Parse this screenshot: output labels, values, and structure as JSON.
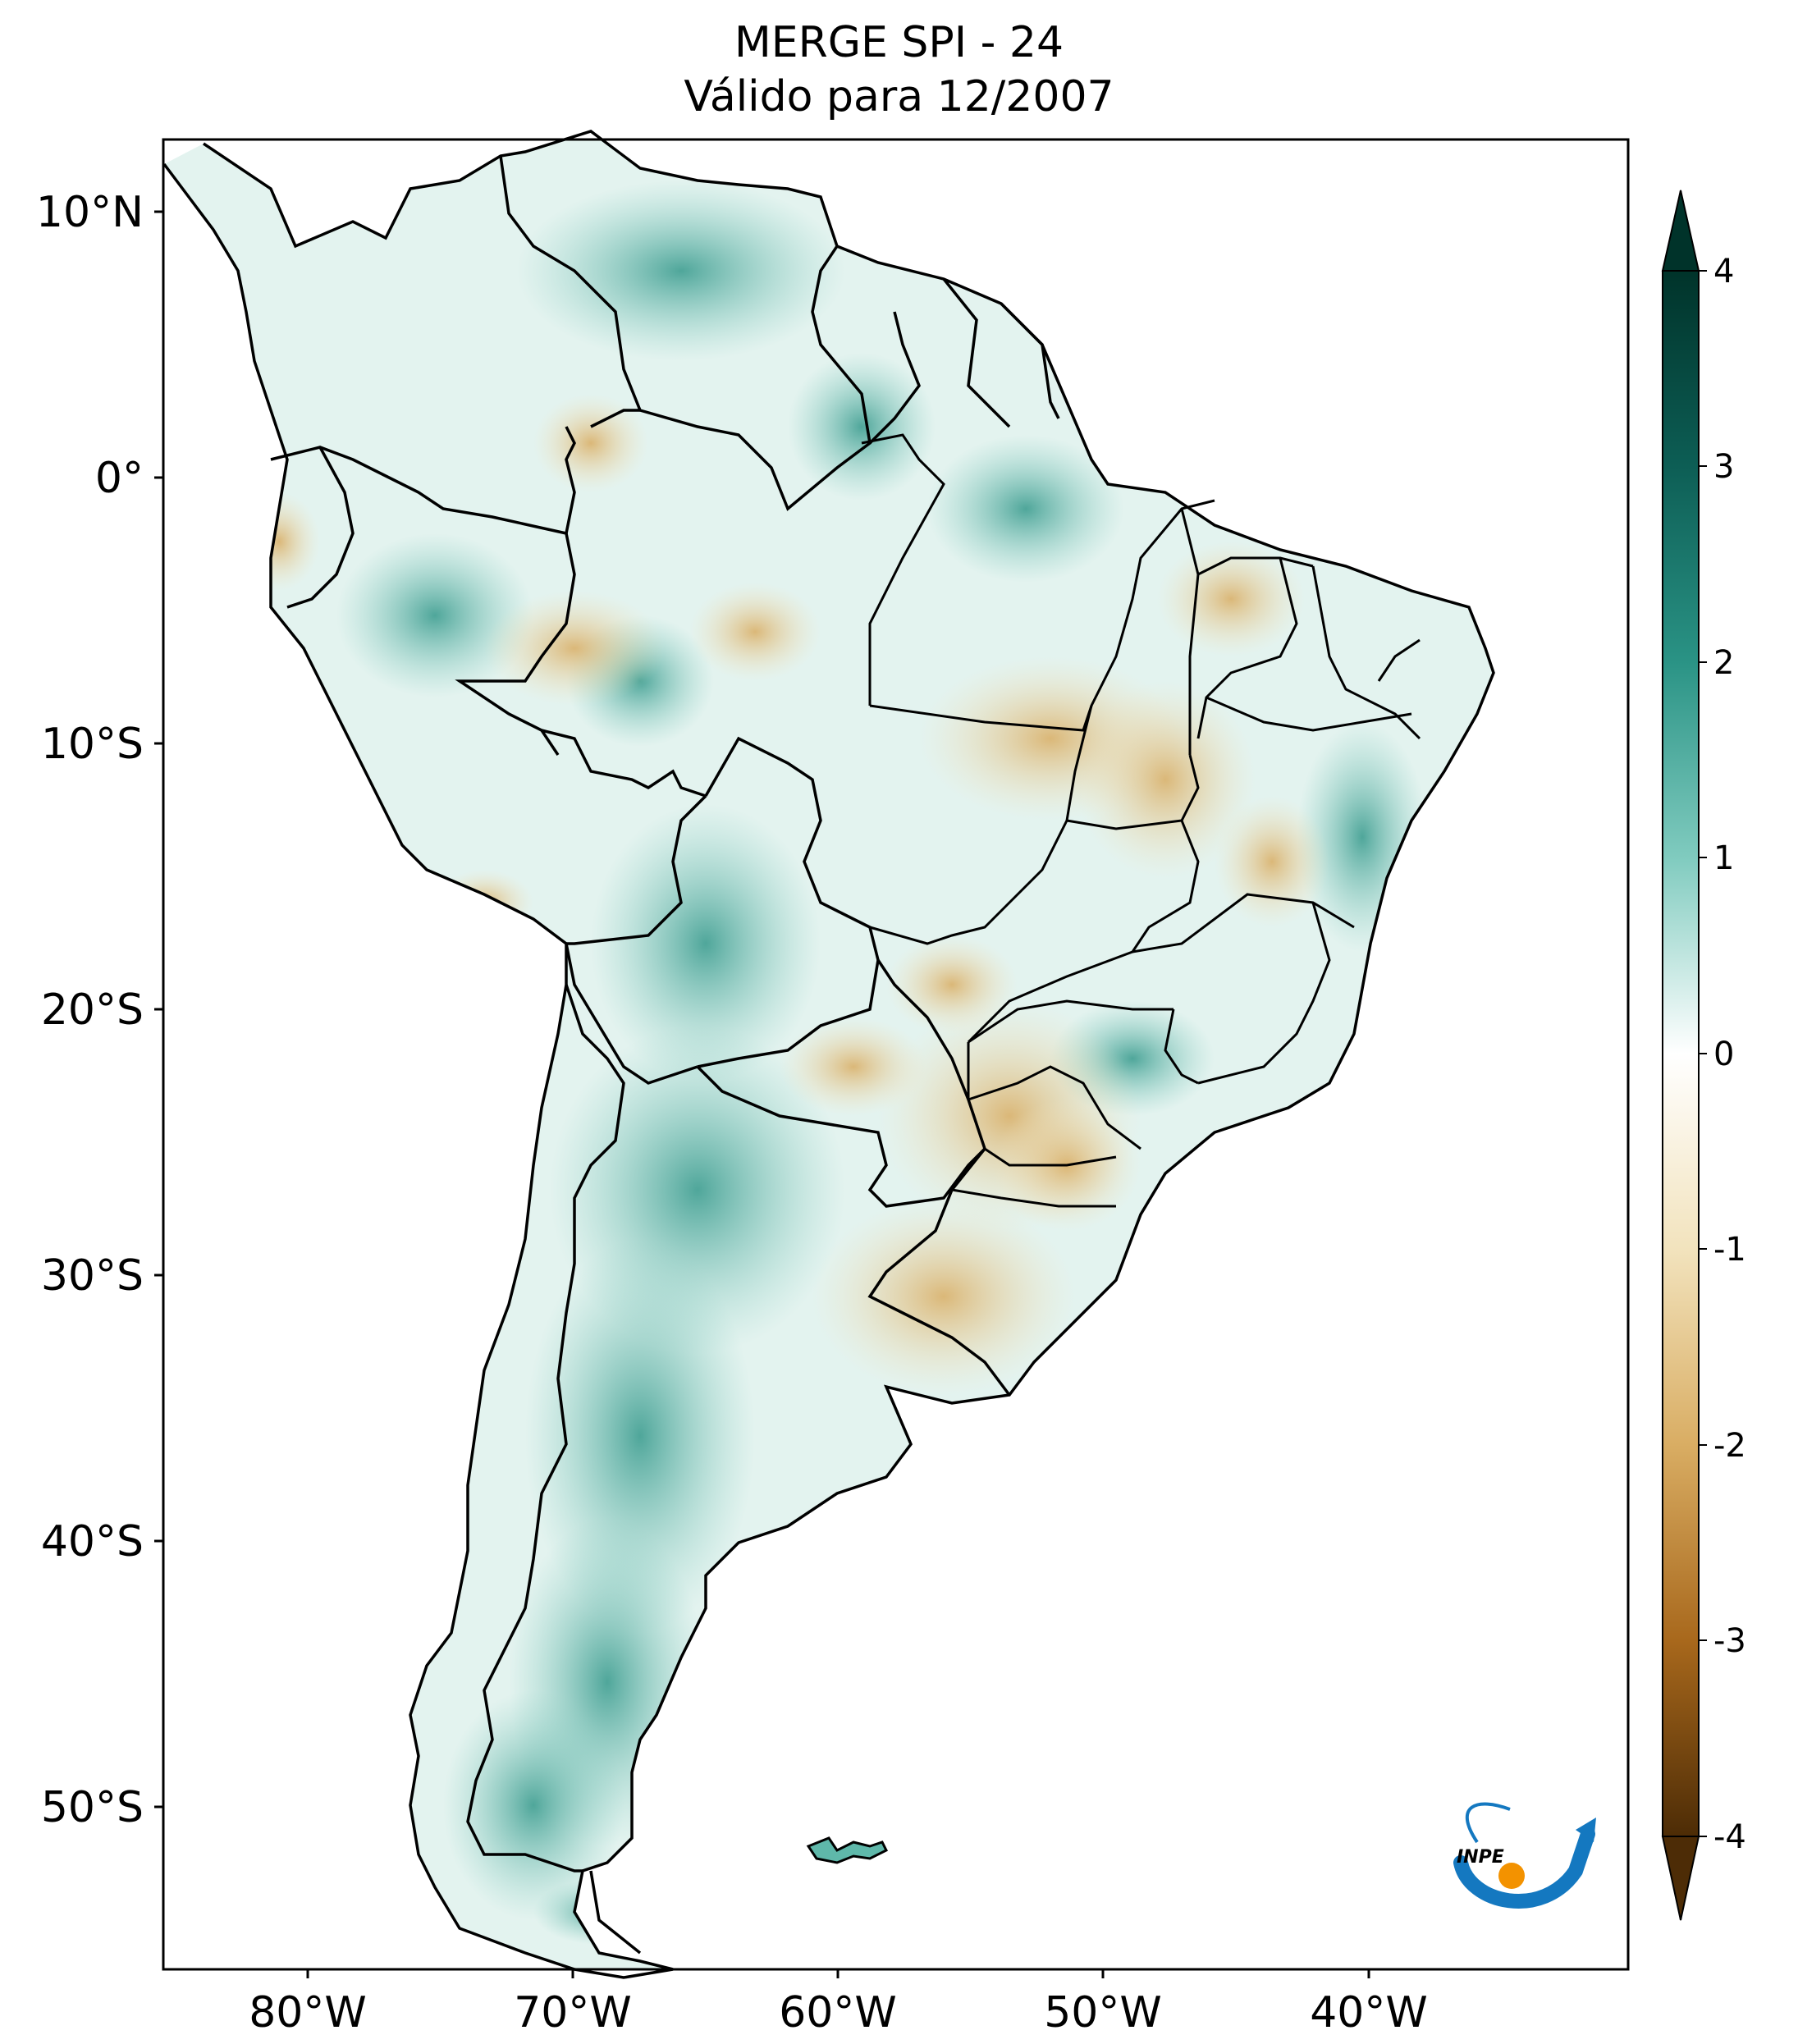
{
  "title": "MERGE   SPI - 24",
  "subtitle": "Válido para 12/2007",
  "lon_ticks": [
    "80°W",
    "70°W",
    "60°W",
    "50°W",
    "40°W"
  ],
  "lat_ticks": [
    "10°N",
    "0°",
    "10°S",
    "20°S",
    "30°S",
    "40°S",
    "50°S"
  ],
  "colorbar": {
    "ticks": [
      "4",
      "3",
      "2",
      "1",
      "0",
      "-1",
      "-2",
      "-3",
      "-4"
    ],
    "colors": {
      "wet_max": "#00332a",
      "wet_high": "#1b7c72",
      "wet_mid": "#5fb8aa",
      "wet_low": "#c7eae5",
      "neutral": "#ffffff",
      "dry_low": "#f1e0b5",
      "dry_mid": "#d6a95a",
      "dry_high": "#9a5c14",
      "dry_max": "#4d2c06"
    }
  },
  "logo_text": "INPE",
  "logo_colors": {
    "arc": "#1478c0",
    "dot": "#f39200"
  }
}
